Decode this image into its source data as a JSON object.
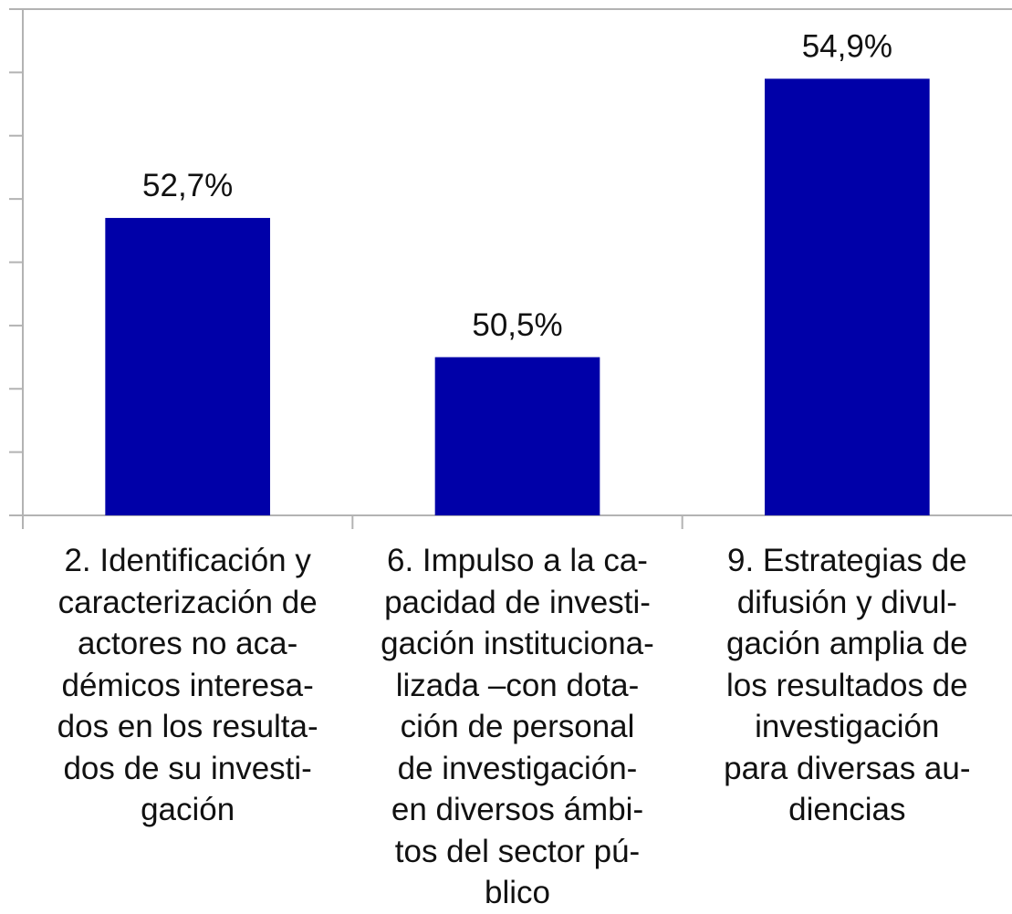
{
  "chart_data": {
    "type": "bar",
    "categories": [
      "2. Identificación y\ncaracterización de\nactores no aca-\ndémicos interesa-\ndos en los resulta-\ndos de su investi-\ngación",
      "6. Impulso a la ca-\npacidad de investi-\ngación instituciona-\nlizada –con dota-\nción de personal\nde investigación-\nen diversos ámbi-\ntos del sector pú-\nblico",
      "9. Estrategias de\ndifusión y divul-\ngación amplia de\nlos resultados de\ninvestigación\npara diversas au-\ndiencias"
    ],
    "values": [
      52.7,
      50.5,
      54.9
    ],
    "value_labels": [
      "52,7%",
      "50,5%",
      "54,9%"
    ],
    "color": "#0000a8",
    "ylim": [
      48,
      56
    ],
    "yticks": [
      48,
      49,
      50,
      51,
      52,
      53,
      54,
      55,
      56
    ],
    "grid": false
  }
}
